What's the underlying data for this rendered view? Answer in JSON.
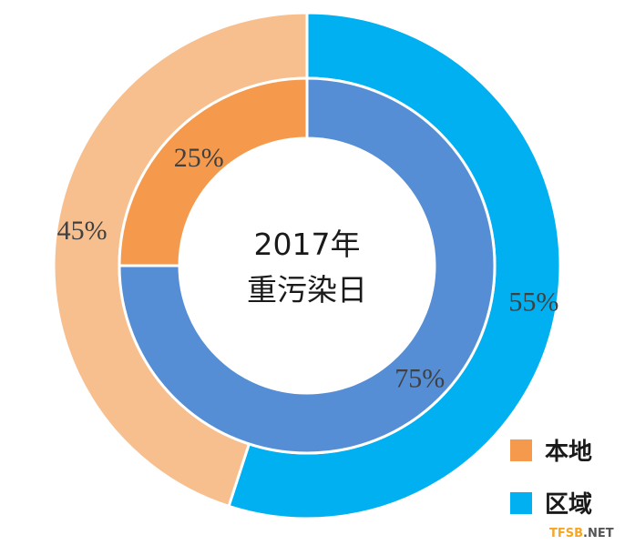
{
  "chart_data": {
    "type": "pie",
    "center_title": [
      "2017年",
      "重污染日"
    ],
    "legend": [
      {
        "name": "本地",
        "color": "#f59a4c"
      },
      {
        "name": "区域",
        "color": "#00b0f0"
      }
    ],
    "rings": [
      {
        "ring": "outer",
        "slices": [
          {
            "series": "区域",
            "value": 55,
            "label": "55%",
            "color": "#00b0f0"
          },
          {
            "series": "本地",
            "value": 45,
            "label": "45%",
            "color": "#f8bf8e"
          }
        ]
      },
      {
        "ring": "inner",
        "slices": [
          {
            "series": "区域",
            "value": 75,
            "label": "75%",
            "color": "#558ed5"
          },
          {
            "series": "本地",
            "value": 25,
            "label": "25%",
            "color": "#f59a4c"
          }
        ]
      }
    ]
  },
  "watermark": {
    "part1": "TFSB",
    "part2": ".NET",
    "color1": "#f5a623",
    "color2": "#555555"
  }
}
